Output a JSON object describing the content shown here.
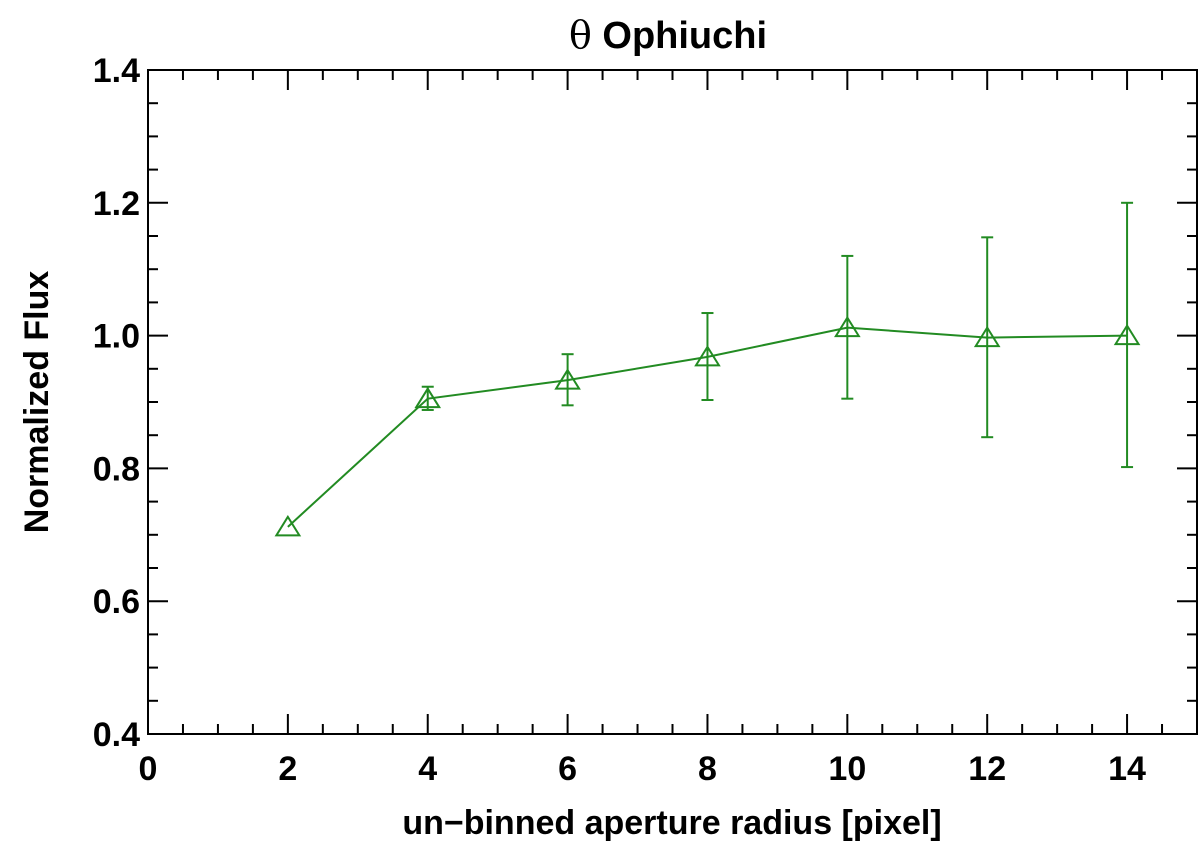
{
  "chart_data": {
    "type": "line",
    "title_symbol": "θ",
    "title": "Ophiuchi",
    "xlabel": "un−binned aperture radius [pixel]",
    "ylabel": "Normalized Flux",
    "xlim": [
      0,
      15
    ],
    "ylim": [
      0.4,
      1.4
    ],
    "x_major_ticks": [
      0,
      2,
      4,
      6,
      8,
      10,
      12,
      14
    ],
    "x_tick_labels": [
      "0",
      "2",
      "4",
      "6",
      "8",
      "10",
      "12",
      "14"
    ],
    "x_minor_step": 0.5,
    "y_major_ticks": [
      0.4,
      0.6,
      0.8,
      1.0,
      1.2,
      1.4
    ],
    "y_tick_labels": [
      "0.4",
      "0.6",
      "0.8",
      "1.0",
      "1.2",
      "1.4"
    ],
    "y_minor_step": 0.05,
    "grid": false,
    "series": [
      {
        "color": "#228B22",
        "marker": "triangle-open",
        "x": [
          2,
          4,
          6,
          8,
          10,
          12,
          14
        ],
        "y": [
          0.712,
          0.905,
          0.933,
          0.968,
          1.012,
          0.997,
          1.0
        ],
        "err_low": [
          0.712,
          0.888,
          0.895,
          0.903,
          0.905,
          0.847,
          0.802
        ],
        "err_high": [
          0.712,
          0.923,
          0.972,
          1.034,
          1.12,
          1.148,
          1.2
        ]
      }
    ]
  }
}
